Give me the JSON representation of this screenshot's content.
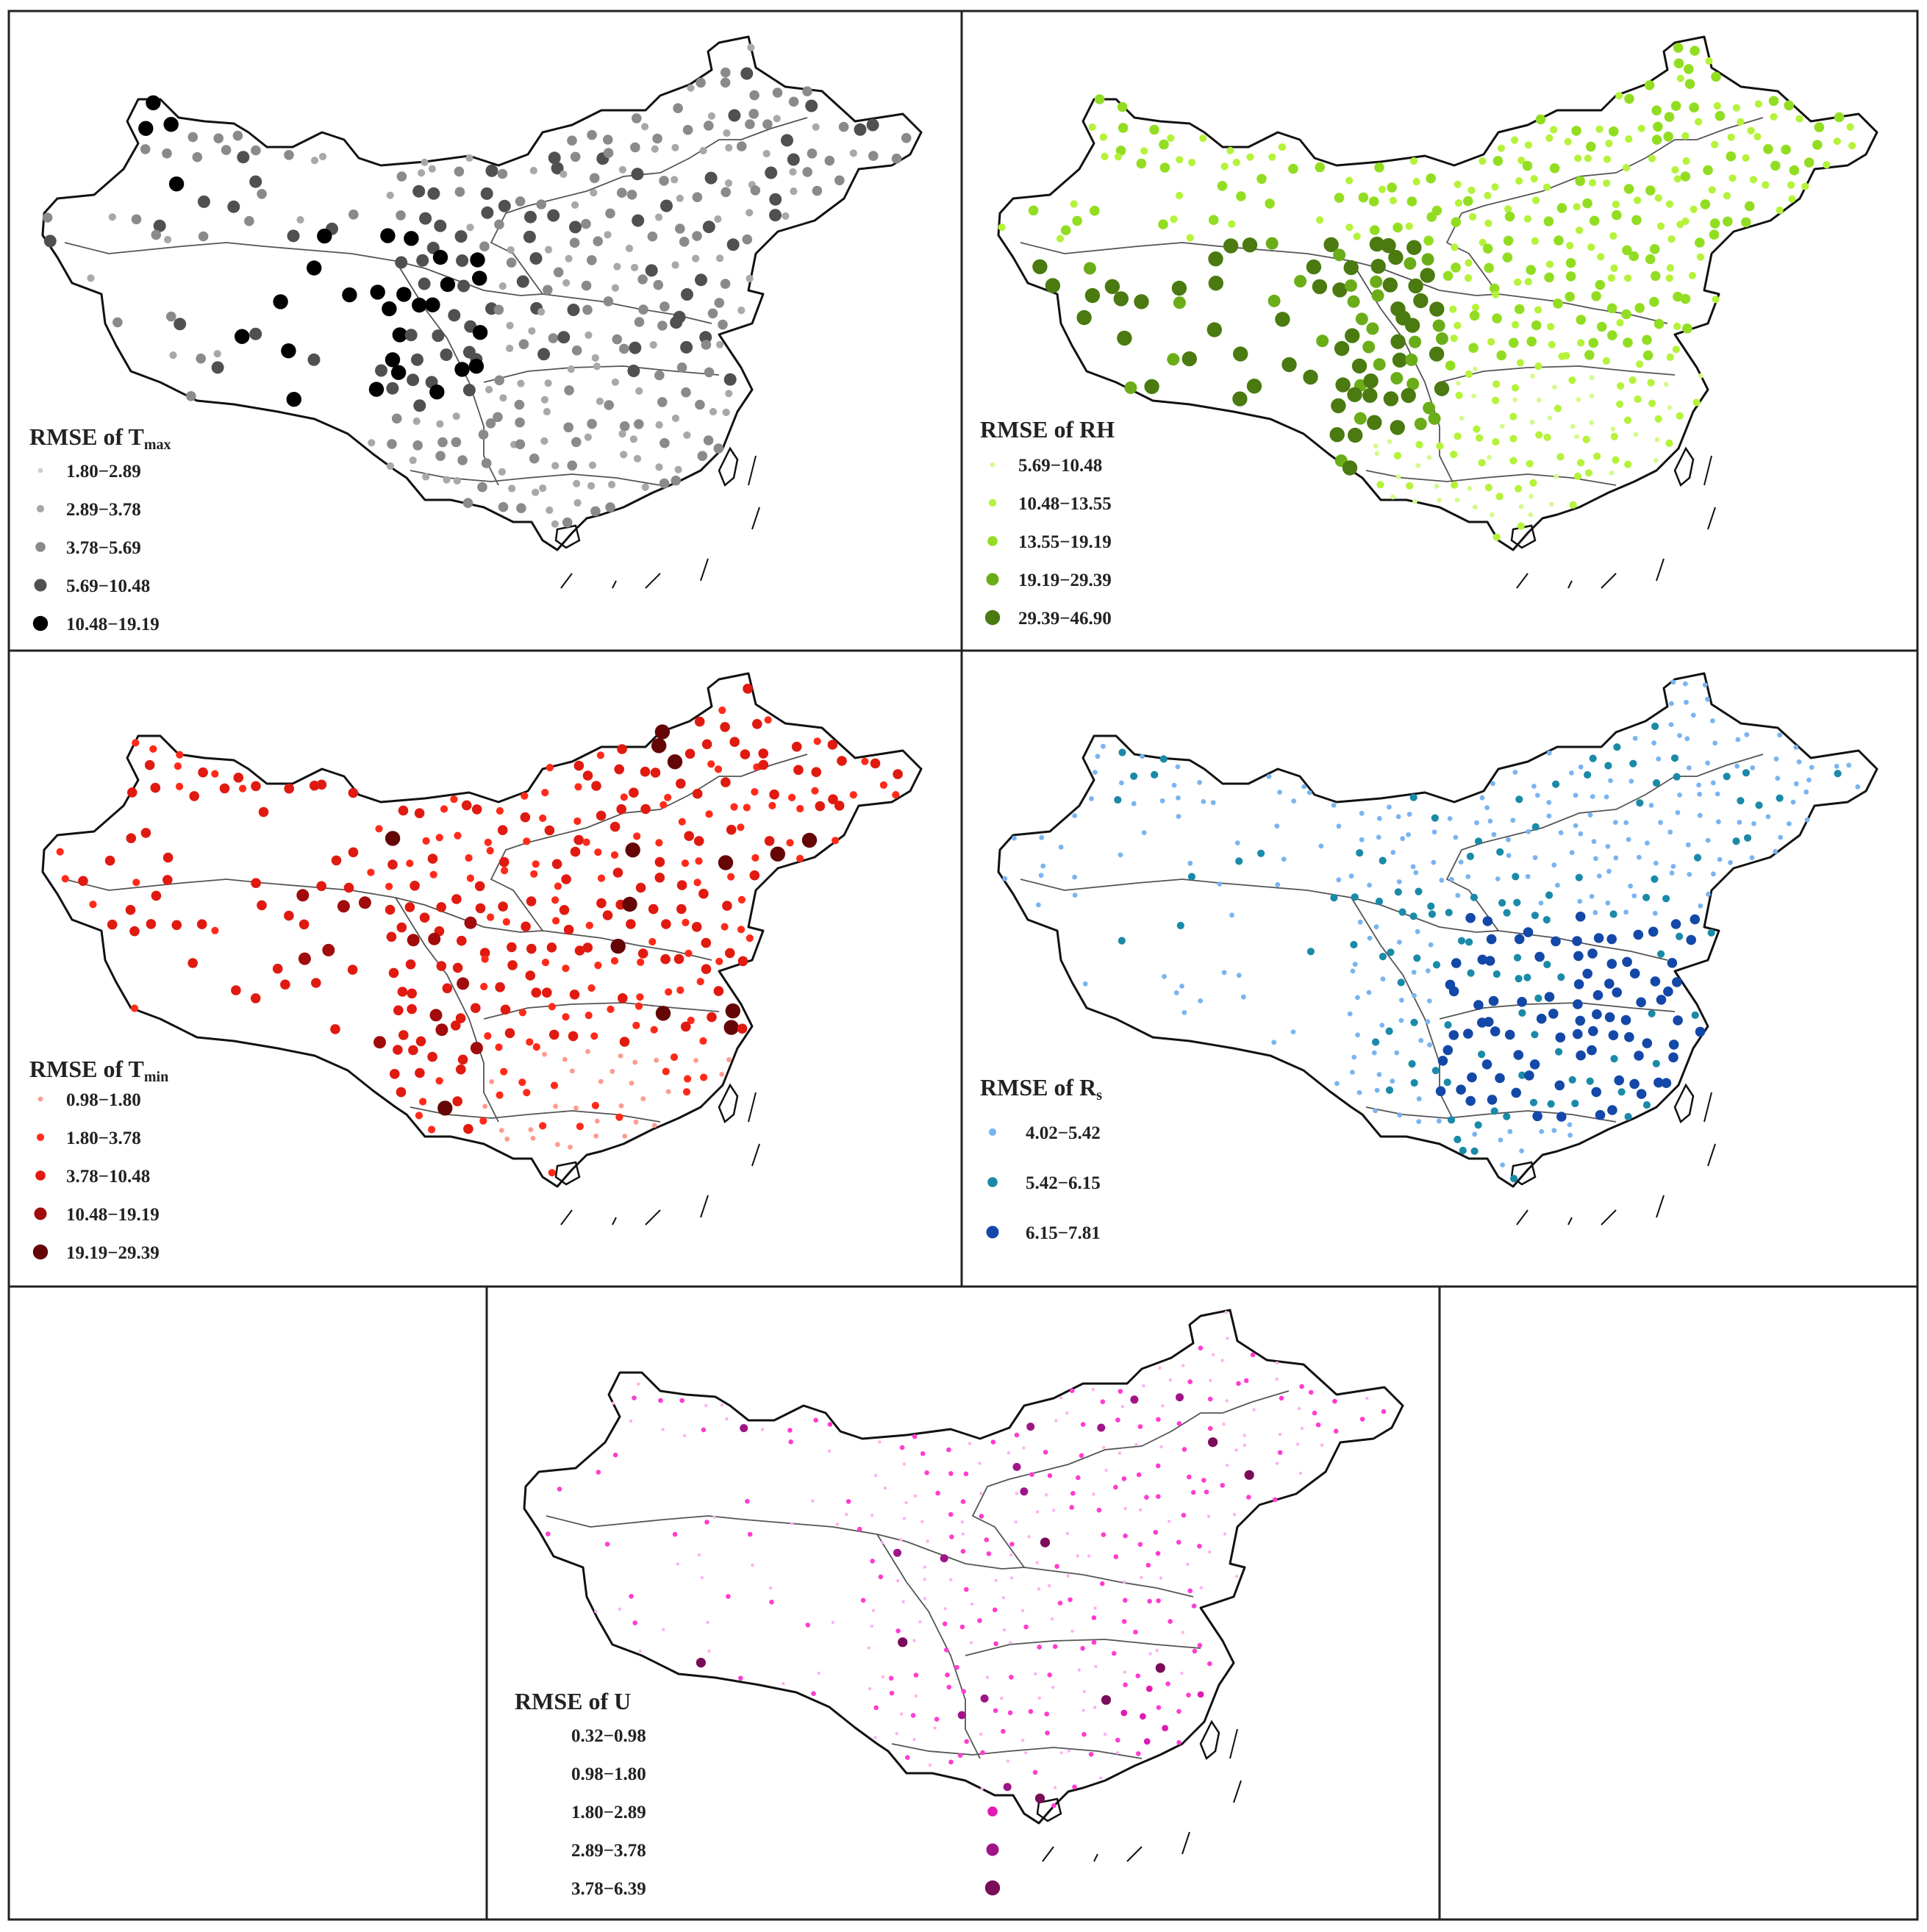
{
  "panels": [
    {
      "id": "tmax",
      "title": "RMSE of T",
      "title_sub": "max",
      "legend": [
        {
          "label": "1.80−2.89",
          "color": "#cfcfcf"
        },
        {
          "label": "2.89−3.78",
          "color": "#a8a8a8"
        },
        {
          "label": "3.78−5.69",
          "color": "#8a8a8a"
        },
        {
          "label": "5.69−10.48",
          "color": "#505050"
        },
        {
          "label": "10.48−19.19",
          "color": "#000000"
        }
      ]
    },
    {
      "id": "rh",
      "title": "RMSE of RH",
      "title_sub": "",
      "legend": [
        {
          "label": "5.69−10.48",
          "color": "#d4fa8c"
        },
        {
          "label": "10.48−13.55",
          "color": "#b5f23a"
        },
        {
          "label": "13.55−19.19",
          "color": "#92dd22"
        },
        {
          "label": "19.19−29.39",
          "color": "#6aad18"
        },
        {
          "label": "29.39−46.90",
          "color": "#4a7a10"
        }
      ]
    },
    {
      "id": "tmin",
      "title": "RMSE of T",
      "title_sub": "min",
      "legend": [
        {
          "label": "0.98−1.80",
          "color": "#ff9a90"
        },
        {
          "label": "1.80−3.78",
          "color": "#ff2a1a"
        },
        {
          "label": "3.78−10.48",
          "color": "#e01a10"
        },
        {
          "label": "10.48−19.19",
          "color": "#a00c0c"
        },
        {
          "label": "19.19−29.39",
          "color": "#650606"
        }
      ]
    },
    {
      "id": "rs",
      "title": "RMSE of R",
      "title_sub": "s",
      "legend": [
        {
          "label": "4.02−5.42",
          "color": "#7ab4f0"
        },
        {
          "label": "5.42−6.15",
          "color": "#1a8aa8"
        },
        {
          "label": "6.15−7.81",
          "color": "#1448a8"
        }
      ]
    },
    {
      "id": "u",
      "title": "RMSE of U",
      "title_sub": "",
      "legend": [
        {
          "label": "0.32−0.98",
          "color": "#ffb0f0"
        },
        {
          "label": "0.98−1.80",
          "color": "#ff3cd0"
        },
        {
          "label": "1.80−2.89",
          "color": "#e01ab4"
        },
        {
          "label": "2.89−3.78",
          "color": "#a01488"
        },
        {
          "label": "3.78−6.39",
          "color": "#7a0c5a"
        }
      ]
    }
  ]
}
